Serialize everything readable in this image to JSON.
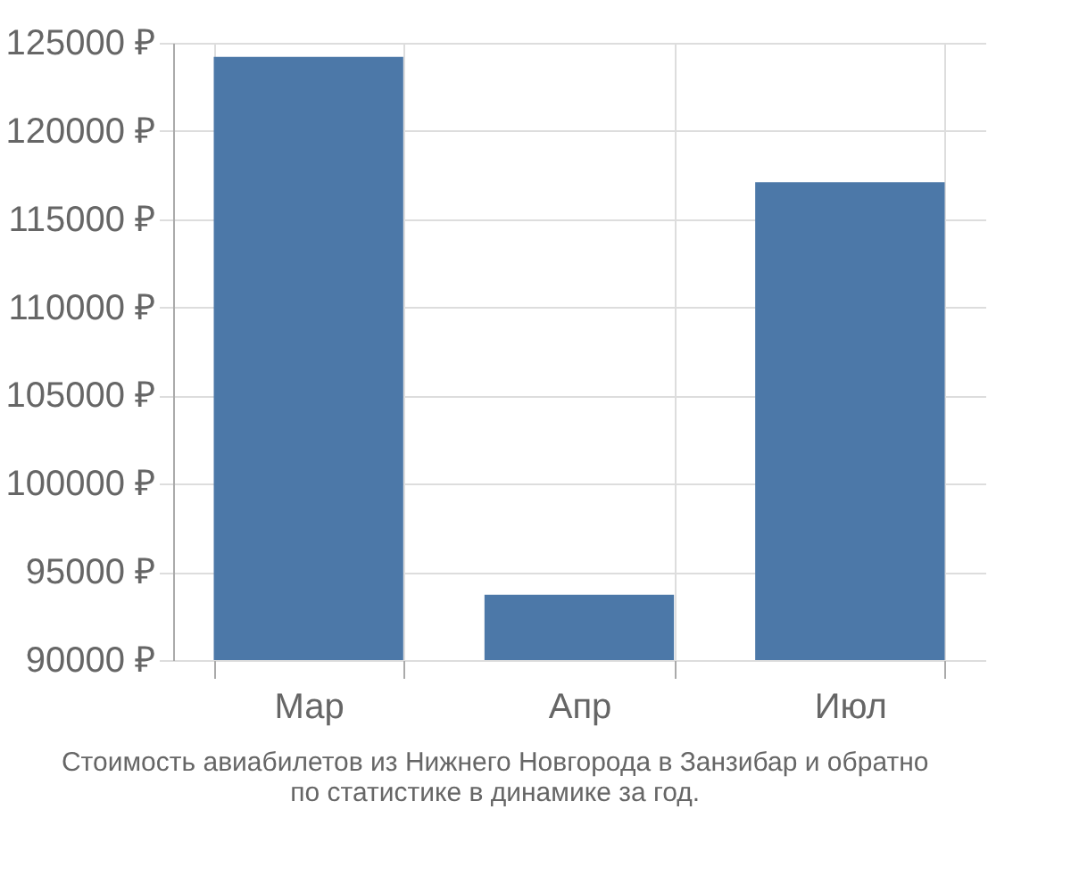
{
  "chart_data": {
    "type": "bar",
    "categories": [
      "Мар",
      "Апр",
      "Июл"
    ],
    "values": [
      124200,
      93700,
      117100
    ],
    "color": "#4c78a8",
    "ylim": [
      90000,
      125000
    ],
    "yticks": [
      {
        "value": 90000,
        "label": "90000 ₽"
      },
      {
        "value": 95000,
        "label": "95000 ₽"
      },
      {
        "value": 100000,
        "label": "100000 ₽"
      },
      {
        "value": 105000,
        "label": "105000 ₽"
      },
      {
        "value": 110000,
        "label": "110000 ₽"
      },
      {
        "value": 115000,
        "label": "115000 ₽"
      },
      {
        "value": 120000,
        "label": "120000 ₽"
      },
      {
        "value": 125000,
        "label": "125000 ₽"
      }
    ],
    "grid": true,
    "annotations": [
      "Стоимость авиабилетов из Нижнего Новгорода в Занзибар и обратно",
      "по статистике в динамике за год."
    ]
  }
}
